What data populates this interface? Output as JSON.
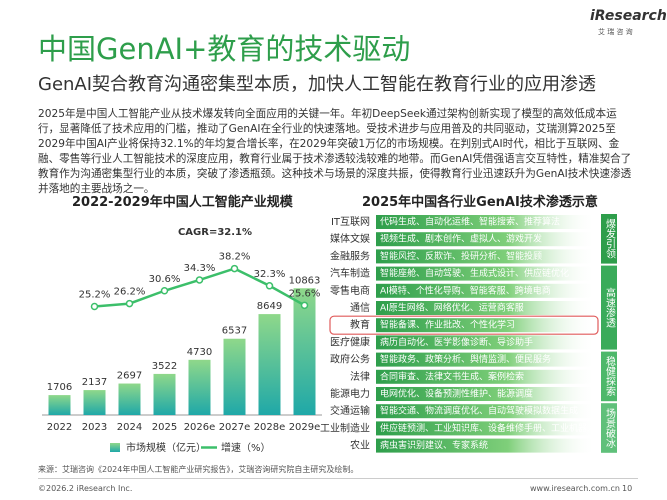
{
  "header": {
    "title": "中国GenAI+教育的技术驱动",
    "subtitle": "GenAI契合教育沟通密集型本质，加快人工智能在教育行业的应用渗透",
    "logo": "iResearch",
    "logo_sub": "艾 瑞 咨 询"
  },
  "body": "2025年是中国人工智能产业从技术爆发转向全面应用的关键一年。年初DeepSeek通过架构创新实现了模型的高效低成本运行，显著降低了技术应用的门槛，推动了GenAI在全行业的快速落地。受技术进步与应用普及的共同驱动，艾瑞测算2025至2029年中国AI产业将保持32.1%的年均复合增长率，在2029年突破1万亿的市场规模。在判别式AI时代，相比于互联网、金融、零售等行业人工智能技术的深度应用，教育行业属于技术渗透较浅较难的地带。而GenAI凭借强语言交互特性，精准契合了教育作为沟通密集型行业的本质，突破了渗透瓶颈。这种技术与场景的深度共振，使得教育行业迅速跃升为GenAI技术快速渗透并落地的主要战场之一。",
  "chart_data": {
    "type": "bar",
    "title": "2022-2029年中国人工智能产业规模",
    "annotation": "CAGR=32.1%",
    "categories": [
      "2022",
      "2023",
      "2024",
      "2025",
      "2026e",
      "2027e",
      "2028e",
      "2029e"
    ],
    "ylim": [
      0,
      15000
    ],
    "y2lim": [
      -12,
      48
    ],
    "series": [
      {
        "name": "市场规模（亿元）",
        "color": "#2fb59a",
        "values": [
          1706,
          2137,
          2697,
          3522,
          4730,
          6537,
          8649,
          10863
        ]
      },
      {
        "name": "增速（%）",
        "type": "line",
        "axis": "y2",
        "color": "#3cbf6a",
        "values": [
          null,
          25.2,
          26.2,
          30.6,
          34.3,
          38.2,
          32.3,
          25.6
        ],
        "value_labels": [
          null,
          "25.2%",
          "26.2%",
          "30.6%",
          "34.3%",
          "38.2%",
          "32.3%",
          "25.6%"
        ]
      }
    ]
  },
  "matrix": {
    "title": "2025年中国各行业GenAI技术渗透示意",
    "groups": [
      {
        "label": "爆发引领",
        "rows": [
          {
            "industry": "IT互联网",
            "applications": "代码生成、自动化运维、智能搜索、推荐算法"
          },
          {
            "industry": "媒体文娱",
            "applications": "视频生成、剧本创作、虚拟人、游戏开发"
          },
          {
            "industry": "金融服务",
            "applications": "智能风控、反欺诈、投研分析、智能投顾"
          }
        ]
      },
      {
        "label": "高速渗透",
        "rows": [
          {
            "industry": "汽车制造",
            "applications": "智能座舱、自动驾驶、生成式设计、供应链优化"
          },
          {
            "industry": "零售电商",
            "applications": "AI模特、个性化导购、智能客服、跨境电商"
          },
          {
            "industry": "通信",
            "applications": "AI原生网络、网络优化、运营商客服"
          },
          {
            "industry": "教育",
            "applications": "智能备课、作业批改、个性化学习",
            "highlight": true
          },
          {
            "industry": "医疗健康",
            "applications": "病历自动化、医学影像诊断、导诊助手"
          }
        ]
      },
      {
        "label": "稳健探索",
        "rows": [
          {
            "industry": "政府公务",
            "applications": "智能政务、政策分析、舆情监测、便民服务"
          },
          {
            "industry": "法律",
            "applications": "合同审查、法律文书生成、案例检索"
          },
          {
            "industry": "能源电力",
            "applications": "电网优化、设备预测性维护、能源调度"
          }
        ]
      },
      {
        "label": "场景破冰",
        "rows": [
          {
            "industry": "交通运输",
            "applications": "智能交通、物流调度优化、自动驾驶模拟数据生成"
          },
          {
            "industry": "工业制造业",
            "applications": "供应链预测、工业知识库、设备维修手册、工业机器人"
          },
          {
            "industry": "农业",
            "applications": "病虫害识别建议、专家系统"
          }
        ]
      }
    ]
  },
  "footer": {
    "source": "来源：艾瑞咨询《2024年中国人工智能产业研究报告》，艾瑞咨询研究院自主研究及绘制。",
    "copyright": "©2026.2 iResearch Inc.",
    "url": "www.iresearch.com.cn",
    "page": "10"
  }
}
